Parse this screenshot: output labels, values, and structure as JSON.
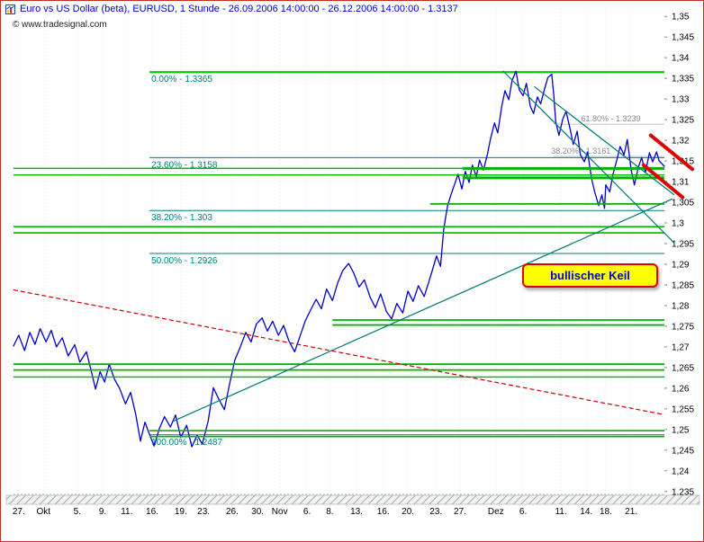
{
  "header": {
    "title": "Euro vs US Dollar (beta), EURUSD, 1 Stunde - 26.09.2006 14:00:00 - 26.12.2006 14:00:00 - 1.3137",
    "watermark": "© www.tradesignal.com"
  },
  "chart_data": {
    "type": "line",
    "title": "Euro vs US Dollar (beta), EURUSD, 1 Stunde",
    "period": "26.09.2006 14:00:00 - 26.12.2006 14:00:00",
    "last_price": "1.3137",
    "annotation": {
      "text": "bullischer Keil"
    },
    "colors": {
      "price": "#0000c8",
      "fib_text": "#008080",
      "fib_zero_line": "#00cc00",
      "fib_line": "#008080",
      "support_resistance": "#00b400",
      "trendline_teal": "#007878",
      "trendline_red": "#cc0000",
      "highlight_red": "#dd0000",
      "grey_line": "#c8c8c8",
      "grey_text": "#8a8a8a",
      "grid": "#e4e4e4",
      "axis_text": "#000000"
    },
    "y_axis": {
      "range": [
        1.2343,
        1.352
      ],
      "ticks": [
        {
          "label": "1,35",
          "price": 1.35
        },
        {
          "label": "1,345",
          "price": 1.345
        },
        {
          "label": "1,34",
          "price": 1.34
        },
        {
          "label": "1,335",
          "price": 1.335
        },
        {
          "label": "1,33",
          "price": 1.33
        },
        {
          "label": "1,325",
          "price": 1.325
        },
        {
          "label": "1,32",
          "price": 1.32
        },
        {
          "label": "1,315",
          "price": 1.315
        },
        {
          "label": "1,31",
          "price": 1.31
        },
        {
          "label": "1,305",
          "price": 1.305
        },
        {
          "label": "1,3",
          "price": 1.3
        },
        {
          "label": "1,295",
          "price": 1.295
        },
        {
          "label": "1,29",
          "price": 1.29
        },
        {
          "label": "1,285",
          "price": 1.285
        },
        {
          "label": "1,28",
          "price": 1.28
        },
        {
          "label": "1,275",
          "price": 1.275
        },
        {
          "label": "1,27",
          "price": 1.27
        },
        {
          "label": "1,265",
          "price": 1.265
        },
        {
          "label": "1,26",
          "price": 1.26
        },
        {
          "label": "1,255",
          "price": 1.255
        },
        {
          "label": "1,25",
          "price": 1.25
        },
        {
          "label": "1,245",
          "price": 1.245
        },
        {
          "label": "1,24",
          "price": 1.24
        },
        {
          "label": "1,235",
          "price": 1.235
        }
      ]
    },
    "x_axis": {
      "ticks": [
        {
          "label": "27.",
          "f": 0.008
        },
        {
          "label": "Okt",
          "f": 0.046
        },
        {
          "label": "5.",
          "f": 0.098
        },
        {
          "label": "9.",
          "f": 0.137
        },
        {
          "label": "11.",
          "f": 0.174
        },
        {
          "label": "16.",
          "f": 0.213
        },
        {
          "label": "19.",
          "f": 0.257
        },
        {
          "label": "23.",
          "f": 0.292
        },
        {
          "label": "26.",
          "f": 0.336
        },
        {
          "label": "30.",
          "f": 0.375
        },
        {
          "label": "Nov",
          "f": 0.409
        },
        {
          "label": "6.",
          "f": 0.451
        },
        {
          "label": "8.",
          "f": 0.486
        },
        {
          "label": "13.",
          "f": 0.527
        },
        {
          "label": "16.",
          "f": 0.568
        },
        {
          "label": "20.",
          "f": 0.606
        },
        {
          "label": "23.",
          "f": 0.649
        },
        {
          "label": "27.",
          "f": 0.686
        },
        {
          "label": "Dez",
          "f": 0.741
        },
        {
          "label": "6.",
          "f": 0.783
        },
        {
          "label": "11.",
          "f": 0.841
        },
        {
          "label": "14.",
          "f": 0.88
        },
        {
          "label": "18.",
          "f": 0.91
        },
        {
          "label": "21.",
          "f": 0.949
        }
      ]
    },
    "fib_start_f": 0.209,
    "fib_levels": [
      {
        "label": "0.00% - 1.3365",
        "price": 1.3365,
        "line_color": "#00cc00",
        "line_width": 2.2
      },
      {
        "label": "23.60% - 1.3158",
        "price": 1.3158,
        "line_color": "#008080",
        "line_width": 1
      },
      {
        "label": "38.20% - 1.303",
        "price": 1.303,
        "line_color": "#008080",
        "line_width": 1
      },
      {
        "label": "50.00% - 1.2926",
        "price": 1.2926,
        "line_color": "#008080",
        "line_width": 1
      },
      {
        "label": "100.00% - 1.2487",
        "price": 1.2487,
        "line_color": "#008080",
        "line_width": 1
      }
    ],
    "secondary_fib": [
      {
        "label": "61.80% - 1.3239",
        "price": 1.3239,
        "from": 0.83,
        "label_f": 0.872
      },
      {
        "label": "38.20% - 1.3161",
        "price": 1.3161,
        "from": 0.83,
        "label_f": 0.826
      }
    ],
    "support_resistance": [
      {
        "price": 1.3132,
        "from": 0,
        "width": 1.4
      },
      {
        "price": 1.3116,
        "from": 0,
        "width": 1.4
      },
      {
        "price": 1.3132,
        "from": 0.69,
        "width": 3
      },
      {
        "price": 1.3109,
        "from": 0.69,
        "width": 3
      },
      {
        "price": 1.3046,
        "from": 0.64,
        "width": 1.8
      },
      {
        "price": 1.2991,
        "from": 0,
        "width": 1.6
      },
      {
        "price": 1.2976,
        "from": 0,
        "width": 1.6
      },
      {
        "price": 1.2765,
        "from": 0.49,
        "width": 1.8
      },
      {
        "price": 1.2753,
        "from": 0.49,
        "width": 1.8
      },
      {
        "price": 1.2658,
        "from": 0,
        "width": 1.8
      },
      {
        "price": 1.2644,
        "from": 0,
        "width": 1.8
      },
      {
        "price": 1.2627,
        "from": 0,
        "width": 1.4
      },
      {
        "price": 1.2497,
        "from": 0.209,
        "width": 1.6
      },
      {
        "price": 1.2483,
        "from": 0.209,
        "width": 1.6
      }
    ],
    "trendlines": [
      {
        "name": "descending-resistance",
        "f1": 0.0,
        "p1": 1.2838,
        "f2": 1.0,
        "p2": 1.2536,
        "color": "#cc0000",
        "width": 1.2,
        "dash": "5,3"
      },
      {
        "name": "rising-support",
        "f1": 0.245,
        "p1": 1.252,
        "f2": 1.012,
        "p2": 1.3058,
        "color": "#007878",
        "width": 1.2
      },
      {
        "name": "wedge-upper",
        "f1": 0.8,
        "p1": 1.333,
        "f2": 1.015,
        "p2": 1.3068,
        "color": "#007878",
        "width": 1.2
      },
      {
        "name": "wedge-lower",
        "f1": 0.752,
        "p1": 1.3368,
        "f2": 1.015,
        "p2": 1.2952,
        "color": "#007878",
        "width": 1.2
      }
    ],
    "highlight_marks": [
      {
        "f1": 0.979,
        "p1": 1.3212,
        "f2": 1.043,
        "p2": 1.313,
        "width": 4
      },
      {
        "f1": 0.968,
        "p1": 1.314,
        "f2": 1.028,
        "p2": 1.3062,
        "width": 4
      }
    ],
    "series": [
      {
        "name": "EURUSD 1h close",
        "color": "#0000c8",
        "points": [
          [
            0.0,
            1.2702
          ],
          [
            0.008,
            1.2728
          ],
          [
            0.017,
            1.2691
          ],
          [
            0.025,
            1.2735
          ],
          [
            0.033,
            1.2706
          ],
          [
            0.041,
            1.2744
          ],
          [
            0.05,
            1.2712
          ],
          [
            0.058,
            1.274
          ],
          [
            0.066,
            1.27
          ],
          [
            0.075,
            1.2722
          ],
          [
            0.084,
            1.2678
          ],
          [
            0.094,
            1.2705
          ],
          [
            0.102,
            1.2663
          ],
          [
            0.112,
            1.2688
          ],
          [
            0.119,
            1.2645
          ],
          [
            0.126,
            1.2598
          ],
          [
            0.133,
            1.264
          ],
          [
            0.14,
            1.2615
          ],
          [
            0.147,
            1.2658
          ],
          [
            0.155,
            1.2622
          ],
          [
            0.163,
            1.26
          ],
          [
            0.172,
            1.2562
          ],
          [
            0.18,
            1.259
          ],
          [
            0.188,
            1.2535
          ],
          [
            0.195,
            1.2472
          ],
          [
            0.202,
            1.2518
          ],
          [
            0.209,
            1.2488
          ],
          [
            0.216,
            1.246
          ],
          [
            0.224,
            1.2502
          ],
          [
            0.232,
            1.2531
          ],
          [
            0.241,
            1.2506
          ],
          [
            0.249,
            1.2535
          ],
          [
            0.257,
            1.2481
          ],
          [
            0.266,
            1.251
          ],
          [
            0.274,
            1.2458
          ],
          [
            0.282,
            1.2486
          ],
          [
            0.29,
            1.2465
          ],
          [
            0.299,
            1.252
          ],
          [
            0.307,
            1.2601
          ],
          [
            0.315,
            1.2575
          ],
          [
            0.324,
            1.2548
          ],
          [
            0.332,
            1.261
          ],
          [
            0.34,
            1.2668
          ],
          [
            0.349,
            1.2702
          ],
          [
            0.357,
            1.2735
          ],
          [
            0.365,
            1.2712
          ],
          [
            0.373,
            1.2755
          ],
          [
            0.382,
            1.277
          ],
          [
            0.39,
            1.2738
          ],
          [
            0.398,
            1.2762
          ],
          [
            0.407,
            1.2728
          ],
          [
            0.415,
            1.2752
          ],
          [
            0.423,
            1.2715
          ],
          [
            0.432,
            1.2688
          ],
          [
            0.44,
            1.2725
          ],
          [
            0.448,
            1.2762
          ],
          [
            0.456,
            1.2788
          ],
          [
            0.465,
            1.2815
          ],
          [
            0.473,
            1.2792
          ],
          [
            0.481,
            1.284
          ],
          [
            0.49,
            1.2812
          ],
          [
            0.498,
            1.2855
          ],
          [
            0.506,
            1.2885
          ],
          [
            0.515,
            1.2902
          ],
          [
            0.523,
            1.2878
          ],
          [
            0.531,
            1.2845
          ],
          [
            0.539,
            1.2862
          ],
          [
            0.548,
            1.282
          ],
          [
            0.556,
            1.2795
          ],
          [
            0.564,
            1.2828
          ],
          [
            0.573,
            1.2785
          ],
          [
            0.581,
            1.2768
          ],
          [
            0.589,
            1.2805
          ],
          [
            0.598,
            1.2782
          ],
          [
            0.606,
            1.2835
          ],
          [
            0.614,
            1.281
          ],
          [
            0.622,
            1.2848
          ],
          [
            0.631,
            1.2822
          ],
          [
            0.639,
            1.2862
          ],
          [
            0.644,
            1.2888
          ],
          [
            0.65,
            1.292
          ],
          [
            0.656,
            1.2895
          ],
          [
            0.661,
            1.2985
          ],
          [
            0.667,
            1.3042
          ],
          [
            0.672,
            1.3068
          ],
          [
            0.678,
            1.3095
          ],
          [
            0.683,
            1.3118
          ],
          [
            0.689,
            1.3082
          ],
          [
            0.694,
            1.3125
          ],
          [
            0.7,
            1.3098
          ],
          [
            0.705,
            1.314
          ],
          [
            0.711,
            1.3112
          ],
          [
            0.716,
            1.3152
          ],
          [
            0.722,
            1.3128
          ],
          [
            0.728,
            1.3165
          ],
          [
            0.733,
            1.3205
          ],
          [
            0.739,
            1.3242
          ],
          [
            0.744,
            1.3218
          ],
          [
            0.75,
            1.3282
          ],
          [
            0.755,
            1.332
          ],
          [
            0.761,
            1.3298
          ],
          [
            0.766,
            1.3345
          ],
          [
            0.772,
            1.3367
          ],
          [
            0.777,
            1.3322
          ],
          [
            0.783,
            1.3308
          ],
          [
            0.788,
            1.3338
          ],
          [
            0.794,
            1.3282
          ],
          [
            0.799,
            1.3265
          ],
          [
            0.805,
            1.3305
          ],
          [
            0.81,
            1.3288
          ],
          [
            0.816,
            1.3325
          ],
          [
            0.821,
            1.3352
          ],
          [
            0.827,
            1.336
          ],
          [
            0.83,
            1.331
          ],
          [
            0.833,
            1.3245
          ],
          [
            0.838,
            1.3212
          ],
          [
            0.844,
            1.3252
          ],
          [
            0.849,
            1.327
          ],
          [
            0.855,
            1.3228
          ],
          [
            0.86,
            1.319
          ],
          [
            0.866,
            1.3222
          ],
          [
            0.871,
            1.3165
          ],
          [
            0.877,
            1.3148
          ],
          [
            0.882,
            1.3172
          ],
          [
            0.888,
            1.3108
          ],
          [
            0.893,
            1.3075
          ],
          [
            0.899,
            1.3042
          ],
          [
            0.904,
            1.3068
          ],
          [
            0.908,
            1.3035
          ],
          [
            0.91,
            1.3092
          ],
          [
            0.916,
            1.3075
          ],
          [
            0.921,
            1.3118
          ],
          [
            0.927,
            1.3152
          ],
          [
            0.932,
            1.3185
          ],
          [
            0.938,
            1.3165
          ],
          [
            0.943,
            1.3202
          ],
          [
            0.949,
            1.3128
          ],
          [
            0.954,
            1.3092
          ],
          [
            0.96,
            1.3135
          ],
          [
            0.965,
            1.3158
          ],
          [
            0.971,
            1.3122
          ],
          [
            0.977,
            1.317
          ],
          [
            0.982,
            1.3148
          ],
          [
            0.988,
            1.3172
          ],
          [
            0.992,
            1.315
          ],
          [
            1.0,
            1.3137
          ]
        ]
      }
    ]
  }
}
